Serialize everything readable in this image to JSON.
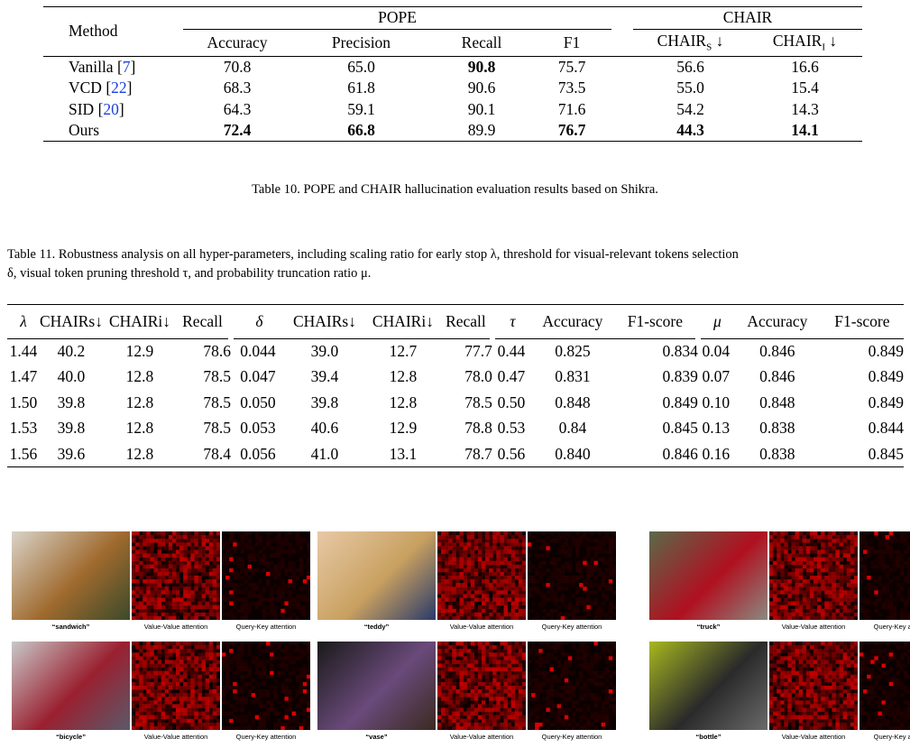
{
  "table10": {
    "header": {
      "method": "Method",
      "pope": "POPE",
      "chair": "CHAIR",
      "cols": [
        "Accuracy",
        "Precision",
        "Recall",
        "F1"
      ],
      "chair_s": "CHAIR",
      "chair_s_sub": "S",
      "chair_i": "CHAIR",
      "chair_i_sub": "I",
      "arrow": "↓"
    },
    "rows": [
      {
        "name": "Vanilla [",
        "ref": "7",
        "close": "]",
        "cells": [
          "70.8",
          "65.0",
          "90.8",
          "75.7",
          "56.6",
          "16.6"
        ],
        "bold": [
          false,
          false,
          true,
          false,
          false,
          false
        ]
      },
      {
        "name": "VCD [",
        "ref": "22",
        "close": "]",
        "cells": [
          "68.3",
          "61.8",
          "90.6",
          "73.5",
          "55.0",
          "15.4"
        ],
        "bold": [
          false,
          false,
          false,
          false,
          false,
          false
        ]
      },
      {
        "name": "SID [",
        "ref": "20",
        "close": "]",
        "cells": [
          "64.3",
          "59.1",
          "90.1",
          "71.6",
          "54.2",
          "14.3"
        ],
        "bold": [
          false,
          false,
          false,
          false,
          false,
          false
        ]
      },
      {
        "name": "Ours",
        "ref": "",
        "close": "",
        "cells": [
          "72.4",
          "66.8",
          "89.9",
          "76.7",
          "44.3",
          "14.1"
        ],
        "bold": [
          true,
          true,
          false,
          true,
          true,
          true
        ]
      }
    ],
    "caption": "Table 10. POPE and CHAIR hallucination evaluation results based on Shikra."
  },
  "table11": {
    "caption_line1": "Table 11. Robustness analysis on all hyper-parameters, including scaling ratio for early stop λ, threshold for visual-relevant tokens selection",
    "caption_line2": "δ, visual token pruning threshold τ, and probability truncation ratio μ.",
    "groups": [
      {
        "headers": [
          "λ",
          "CHAIRs↓",
          "CHAIRi↓",
          "Recall"
        ],
        "rows": [
          [
            "1.44",
            "40.2",
            "12.9",
            "78.6"
          ],
          [
            "1.47",
            "40.0",
            "12.8",
            "78.5"
          ],
          [
            "1.50",
            "39.8",
            "12.8",
            "78.5"
          ],
          [
            "1.53",
            "39.8",
            "12.8",
            "78.5"
          ],
          [
            "1.56",
            "39.6",
            "12.8",
            "78.4"
          ]
        ]
      },
      {
        "headers": [
          "δ",
          "CHAIRs↓",
          "CHAIRi↓",
          "Recall"
        ],
        "rows": [
          [
            "0.044",
            "39.0",
            "12.7",
            "77.7"
          ],
          [
            "0.047",
            "39.4",
            "12.8",
            "78.0"
          ],
          [
            "0.050",
            "39.8",
            "12.8",
            "78.5"
          ],
          [
            "0.053",
            "40.6",
            "12.9",
            "78.8"
          ],
          [
            "0.056",
            "41.0",
            "13.1",
            "78.7"
          ]
        ]
      },
      {
        "headers": [
          "τ",
          "Accuracy",
          "F1-score"
        ],
        "rows": [
          [
            "0.44",
            "0.825",
            "0.834"
          ],
          [
            "0.47",
            "0.831",
            "0.839"
          ],
          [
            "0.50",
            "0.848",
            "0.849"
          ],
          [
            "0.53",
            "0.84",
            "0.845"
          ],
          [
            "0.56",
            "0.840",
            "0.846"
          ]
        ]
      },
      {
        "headers": [
          "μ",
          "Accuracy",
          "F1-score"
        ],
        "rows": [
          [
            "0.04",
            "0.846",
            "0.849"
          ],
          [
            "0.07",
            "0.846",
            "0.849"
          ],
          [
            "0.10",
            "0.848",
            "0.849"
          ],
          [
            "0.13",
            "0.838",
            "0.844"
          ],
          [
            "0.16",
            "0.838",
            "0.845"
          ]
        ]
      }
    ]
  },
  "figure": {
    "vv_label": "Value-Value attention",
    "qk_label": "Query-Key attention",
    "panels": [
      {
        "word": "“sandwich”",
        "photo_colors": [
          "#d9d3c8",
          "#a06a2e",
          "#3b4a2a"
        ]
      },
      {
        "word": "“teddy”",
        "photo_colors": [
          "#e8c9a6",
          "#c8a060",
          "#2a3a6a"
        ]
      },
      {
        "word": "“truck”",
        "photo_colors": [
          "#5a6a4a",
          "#b01020",
          "#8a8a80"
        ]
      },
      {
        "word": "“bicycle”",
        "photo_colors": [
          "#c8c8c8",
          "#9a2030",
          "#5a5a6a"
        ]
      },
      {
        "word": "“vase”",
        "photo_colors": [
          "#1a1a1a",
          "#6a4a7a",
          "#3a2a20"
        ]
      },
      {
        "word": "“bottle”",
        "photo_colors": [
          "#a8b820",
          "#2a2a2a",
          "#6a6a6a"
        ]
      }
    ],
    "heat_color": "#e00000"
  }
}
